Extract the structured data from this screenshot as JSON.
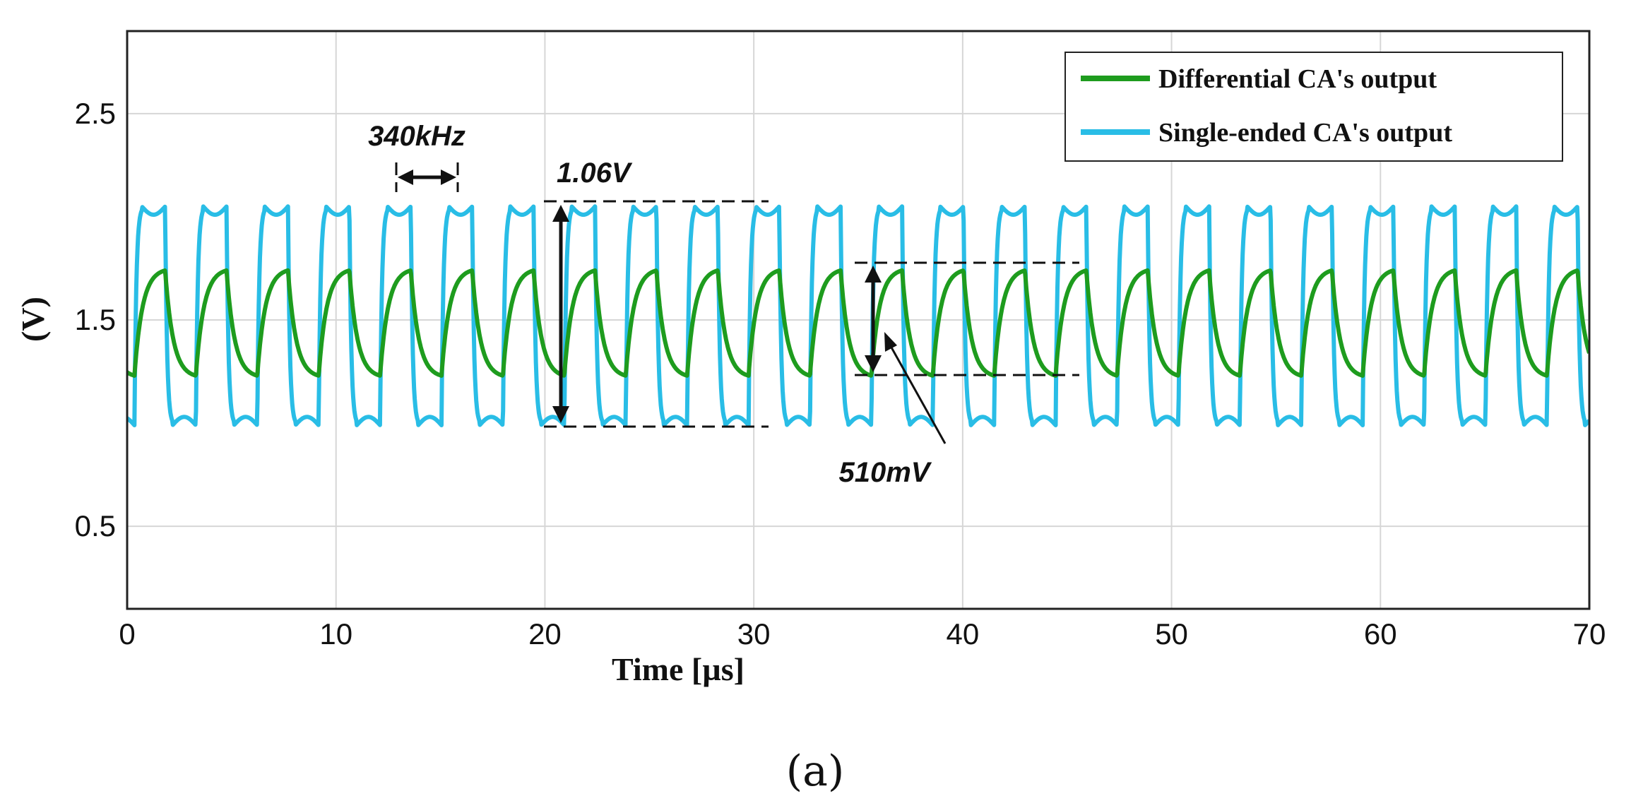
{
  "chart_data": {
    "type": "line",
    "xlabel": "Time [µs]",
    "ylabel": "(V)",
    "xlim": [
      0,
      70
    ],
    "ylim": [
      0.1,
      2.9
    ],
    "x_ticks": [
      0,
      10,
      20,
      30,
      40,
      50,
      60,
      70
    ],
    "x_tick_labels": [
      "0",
      "10",
      "20",
      "30",
      "40",
      "50",
      "60",
      "70"
    ],
    "y_ticks": [
      0.5,
      1.5,
      2.5
    ],
    "y_tick_labels": [
      "0.5",
      "1.5",
      "2.5"
    ],
    "grid": true,
    "legend_position": "top-right",
    "series": [
      {
        "name": "Differential CA's output",
        "color": "#1e9c1e",
        "waveform": "triangular",
        "frequency_khz": 340,
        "period_us": 2.94,
        "min_v": 1.23,
        "max_v": 1.74,
        "peak_to_peak_v": 0.51
      },
      {
        "name": "Single-ended CA's output",
        "color": "#29bde6",
        "waveform": "square",
        "frequency_khz": 340,
        "period_us": 2.94,
        "min_v": 0.99,
        "max_v": 2.05,
        "peak_to_peak_v": 1.06
      }
    ],
    "annotations": [
      {
        "id": "freq",
        "text": "340kHz",
        "x_from": 12.9,
        "x_to": 15.9,
        "y": 1.63
      },
      {
        "id": "single_pp",
        "text": "1.06V",
        "x": 20.8,
        "y_from": 0.99,
        "y_to": 2.05
      },
      {
        "id": "diff_pp",
        "text": "510mV",
        "x": 35.9,
        "y_from": 1.23,
        "y_to": 1.74
      }
    ]
  },
  "caption": "(a)"
}
